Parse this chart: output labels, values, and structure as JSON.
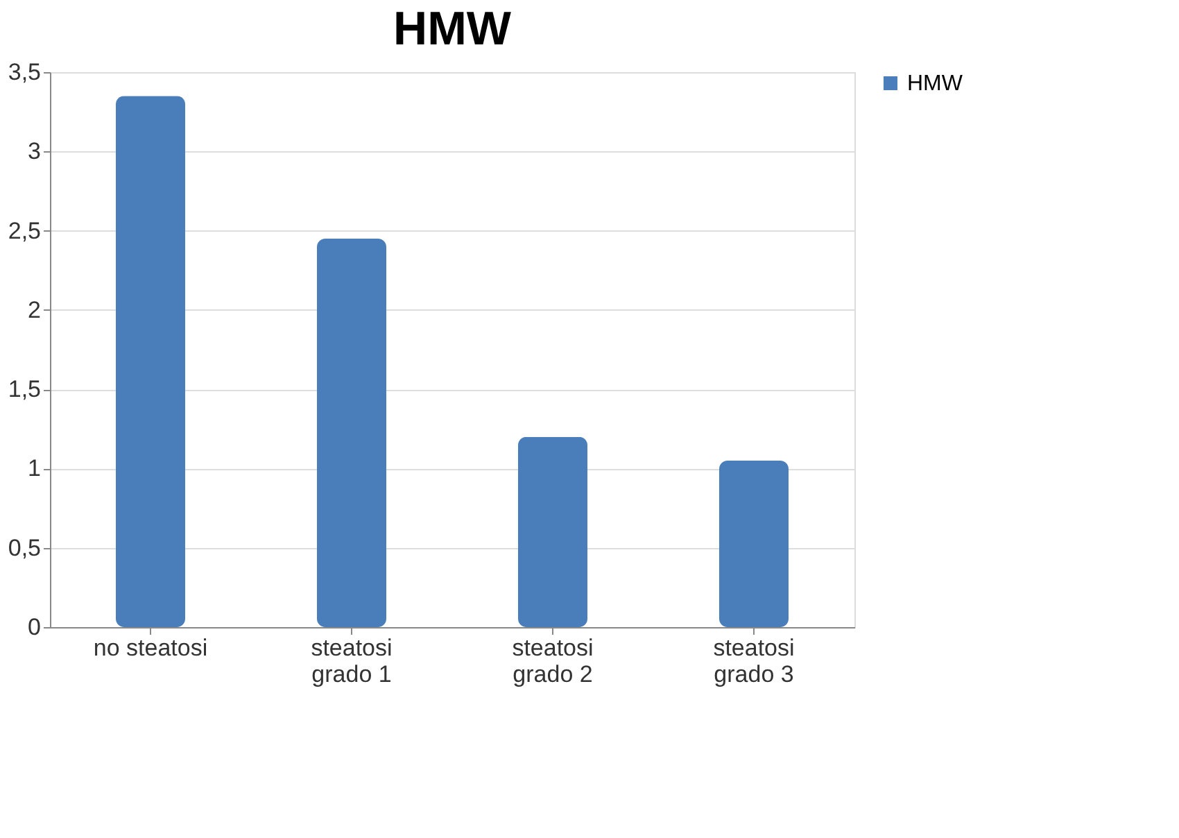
{
  "chart_data": {
    "type": "bar",
    "title": "HMW",
    "categories": [
      "no steatosi",
      "steatosi\ngrado 1",
      "steatosi\ngrado 2",
      "steatosi\ngrado 3"
    ],
    "series": [
      {
        "name": "HMW",
        "color": "#4a7ebb",
        "values": [
          3.35,
          2.45,
          1.2,
          1.05
        ]
      }
    ],
    "ylim": [
      0,
      3.5
    ],
    "yticks": [
      0,
      {
        "value": 0.5,
        "label": "0,5"
      },
      1,
      {
        "value": 1.5,
        "label": "1,5"
      },
      2,
      {
        "value": 2.5,
        "label": "2,5"
      },
      3,
      {
        "value": 3.5,
        "label": "3,5"
      }
    ],
    "grid": "y",
    "legend": "right"
  }
}
